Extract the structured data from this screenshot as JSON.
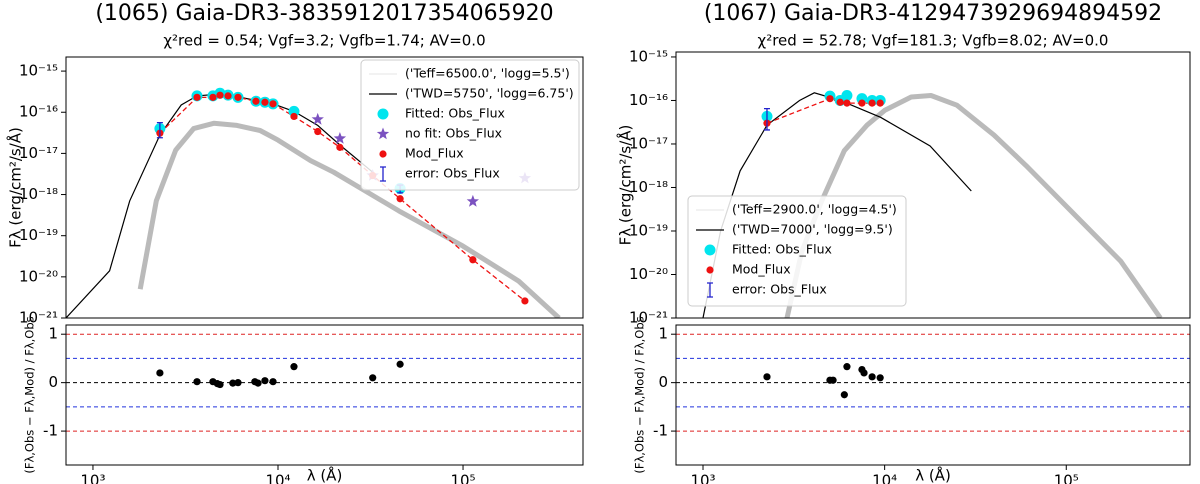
{
  "chart_data": [
    {
      "type": "line",
      "title": "(1065)  Gaia-DR3-3835912017354065920",
      "subtitle": "χ²red = 0.54; Vgf=3.2; Vgfb=1.74; AV=0.0",
      "ylabel": "Fλ (erg/cm²/s/Å)",
      "xscale": "log",
      "yscale": "log",
      "xlim": [
        715,
        445000
      ],
      "ylim": [
        1e-21,
        2.2e-15
      ],
      "yticks": [
        {
          "value": 1e-15,
          "label": "10⁻¹⁵"
        },
        {
          "value": 1e-16,
          "label": "10⁻¹⁶"
        },
        {
          "value": 1e-17,
          "label": "10⁻¹⁷"
        },
        {
          "value": 1e-18,
          "label": "10⁻¹⁸"
        },
        {
          "value": 1e-19,
          "label": "10⁻¹⁹"
        },
        {
          "value": 1e-20,
          "label": "10⁻²⁰"
        },
        {
          "value": 1e-21,
          "label": "10⁻²¹"
        }
      ],
      "legend": "upper right",
      "series": [
        {
          "name": "('Teff=6500.0', 'logg=5.5')",
          "color": "#8c8c8c",
          "marker": "band",
          "x": [
            1800,
            2200,
            2800,
            3500,
            4500,
            6000,
            8000,
            10000,
            15000,
            20000,
            45000,
            100000,
            200000,
            330000
          ],
          "values": [
            5e-21,
            7e-19,
            1.2e-17,
            4e-17,
            5.4e-17,
            4.8e-17,
            3.6e-17,
            2.1e-17,
            6.7e-18,
            3.5e-18,
            4e-19,
            5.6e-20,
            7.9e-21,
            1e-21
          ]
        },
        {
          "name": "('TWD=5750', 'logg=6.75')",
          "color": "#000000",
          "marker": "line",
          "x": [
            715,
            1230,
            1580,
            2300,
            3000,
            3650,
            4500,
            6000,
            9400,
            12200,
            16400,
            21600,
            32500
          ],
          "values": [
            1e-21,
            1.4e-20,
            7e-19,
            2.8e-17,
            1.5e-16,
            2.5e-16,
            2.7e-16,
            2.4e-16,
            1.6e-16,
            1.05e-16,
            4.8e-17,
            1.6e-17,
            3.5e-18
          ]
        },
        {
          "name": "Fitted: Obs_Flux",
          "color": "#00e5ee",
          "marker": "circle",
          "x": [
            2300,
            3650,
            4450,
            4860,
            5370,
            6080,
            7600,
            8500,
            9400,
            12200,
            45700
          ],
          "values": [
            4e-17,
            2.5e-16,
            2.5e-16,
            2.9e-16,
            2.6e-16,
            2.3e-16,
            1.85e-16,
            1.75e-16,
            1.6e-16,
            1.05e-16,
            1.4e-18
          ]
        },
        {
          "name": "no fit: Obs_Flux",
          "color": "#7b52c0",
          "marker": "star",
          "x": [
            16400,
            21600,
            32500,
            113000,
            216000
          ],
          "values": [
            6.7e-17,
            2.3e-17,
            2.9e-18,
            6.8e-19,
            2.5e-18
          ]
        },
        {
          "name": "Mod_Flux",
          "color": "#ee1111",
          "marker": "dot",
          "x": [
            2300,
            3650,
            4450,
            4860,
            5370,
            6080,
            7600,
            8500,
            9400,
            12200,
            16400,
            21600,
            32500,
            45700,
            113000,
            216000
          ],
          "values": [
            3.1e-17,
            2.3e-16,
            2.3e-16,
            2.6e-16,
            2.5e-16,
            2.3e-16,
            1.85e-16,
            1.75e-16,
            1.6e-16,
            7.9e-17,
            3.4e-17,
            1.4e-17,
            2.9e-18,
            7.9e-19,
            2.6e-20,
            2.6e-21
          ]
        },
        {
          "name": "error: Obs_Flux",
          "color": "#2222cc",
          "marker": "errorbar",
          "x": [
            2300,
            45700
          ],
          "values": [
            4e-17,
            1.4e-18
          ],
          "errors": [
            1.6e-17,
            3e-19
          ]
        }
      ]
    },
    {
      "type": "scatter",
      "ylabel": "(Fλ,Obs − Fλ,Mod) / Fλ,Obs",
      "xlabel": "λ (Å)",
      "xscale": "log",
      "xlim": [
        715,
        445000
      ],
      "ylim": [
        -1.7,
        1.19
      ],
      "xticks": [
        {
          "value": 1000,
          "label": "10³"
        },
        {
          "value": 10000,
          "label": "10⁴"
        },
        {
          "value": 100000,
          "label": "10⁵"
        }
      ],
      "yticks": [
        -1,
        0,
        1
      ],
      "hlines": [
        {
          "value": 1,
          "color": "#dd2222"
        },
        {
          "value": 0.5,
          "color": "#2233dd"
        },
        {
          "value": 0,
          "color": "#000000"
        },
        {
          "value": -0.5,
          "color": "#2233dd"
        },
        {
          "value": -1,
          "color": "#dd2222"
        }
      ],
      "color": "#000000",
      "x": [
        2300,
        3650,
        4450,
        4700,
        4860,
        5700,
        6080,
        7500,
        7800,
        8500,
        9400,
        12200,
        32500,
        45700
      ],
      "values": [
        0.2,
        0.02,
        0.02,
        -0.02,
        -0.04,
        -0.01,
        0.0,
        0.02,
        -0.01,
        0.04,
        0.02,
        0.33,
        0.1,
        0.38
      ]
    },
    {
      "type": "line",
      "title": "(1067)  Gaia-DR3-4129473929694894592",
      "subtitle": "χ²red = 52.78; Vgf=181.3; Vgfb=8.02; AV=0.0",
      "ylabel": "Fλ (erg/cm²/s/Å)",
      "xscale": "log",
      "yscale": "log",
      "xlim": [
        710,
        480000
      ],
      "ylim": [
        1e-21,
        1.3e-15
      ],
      "yticks": [
        {
          "value": 1e-15,
          "label": "10⁻¹⁵"
        },
        {
          "value": 1e-16,
          "label": "10⁻¹⁶"
        },
        {
          "value": 1e-17,
          "label": "10⁻¹⁷"
        },
        {
          "value": 1e-18,
          "label": "10⁻¹⁸"
        },
        {
          "value": 1e-19,
          "label": "10⁻¹⁹"
        },
        {
          "value": 1e-20,
          "label": "10⁻²⁰"
        },
        {
          "value": 1e-21,
          "label": "10⁻²¹"
        }
      ],
      "legend": "lower left",
      "series": [
        {
          "name": "('Teff=2900.0', 'logg=4.5')",
          "color": "#8c8c8c",
          "marker": "band",
          "x": [
            2900,
            3500,
            4500,
            6000,
            8000,
            10000,
            14000,
            18000,
            25000,
            40000,
            60000,
            100000,
            200000,
            330000
          ],
          "values": [
            1e-21,
            3.4e-20,
            4.9e-19,
            7e-18,
            2.7e-17,
            5.9e-17,
            1.2e-16,
            1.3e-16,
            7.8e-17,
            1.6e-17,
            3.2e-18,
            3.7e-19,
            2e-20,
            1e-21
          ]
        },
        {
          "name": "('TWD=7000', 'logg=9.5')",
          "color": "#000000",
          "marker": "line",
          "x": [
            1000,
            1250,
            1600,
            2250,
            3400,
            4100,
            5700,
            9500,
            17800,
            30000
          ],
          "values": [
            1e-21,
            1e-19,
            2.4e-18,
            2.7e-17,
            1e-16,
            1.5e-16,
            1e-16,
            4.1e-17,
            9e-18,
            8.3e-19
          ]
        },
        {
          "name": "Fitted: Obs_Flux",
          "color": "#00e5ee",
          "marker": "circle",
          "x": [
            2250,
            5000,
            5690,
            6200,
            7500,
            8530,
            9450
          ],
          "values": [
            4.3e-17,
            1.26e-16,
            1e-16,
            1.3e-16,
            1.1e-16,
            1e-16,
            1e-16
          ]
        },
        {
          "name": "Mod_Flux",
          "color": "#ee1111",
          "marker": "dot",
          "x": [
            2250,
            5000,
            5690,
            6200,
            7500,
            8530,
            9450
          ],
          "values": [
            3e-17,
            1.1e-16,
            9.1e-17,
            8.7e-17,
            8.7e-17,
            8.7e-17,
            8.7e-17
          ]
        },
        {
          "name": "error: Obs_Flux",
          "color": "#2222cc",
          "marker": "errorbar",
          "x": [
            2250
          ],
          "values": [
            4.3e-17
          ],
          "errors": [
            2.2e-17
          ]
        }
      ]
    },
    {
      "type": "scatter",
      "ylabel": "(Fλ,Obs − Fλ,Mod) / Fλ,Obs",
      "xlabel": "λ (Å)",
      "xscale": "log",
      "xlim": [
        710,
        480000
      ],
      "ylim": [
        -1.7,
        1.19
      ],
      "xticks": [
        {
          "value": 1000,
          "label": "10³"
        },
        {
          "value": 10000,
          "label": "10⁴"
        },
        {
          "value": 100000,
          "label": "10⁵"
        }
      ],
      "yticks": [
        -1,
        0,
        1
      ],
      "hlines": [
        {
          "value": 1,
          "color": "#dd2222"
        },
        {
          "value": 0.5,
          "color": "#2233dd"
        },
        {
          "value": 0,
          "color": "#000000"
        },
        {
          "value": -0.5,
          "color": "#2233dd"
        },
        {
          "value": -1,
          "color": "#dd2222"
        }
      ],
      "color": "#000000",
      "x": [
        2250,
        5000,
        5200,
        6200,
        6000,
        7500,
        7700,
        8530,
        9450
      ],
      "values": [
        0.12,
        0.05,
        0.05,
        0.33,
        -0.25,
        0.27,
        0.2,
        0.12,
        0.1
      ]
    }
  ]
}
